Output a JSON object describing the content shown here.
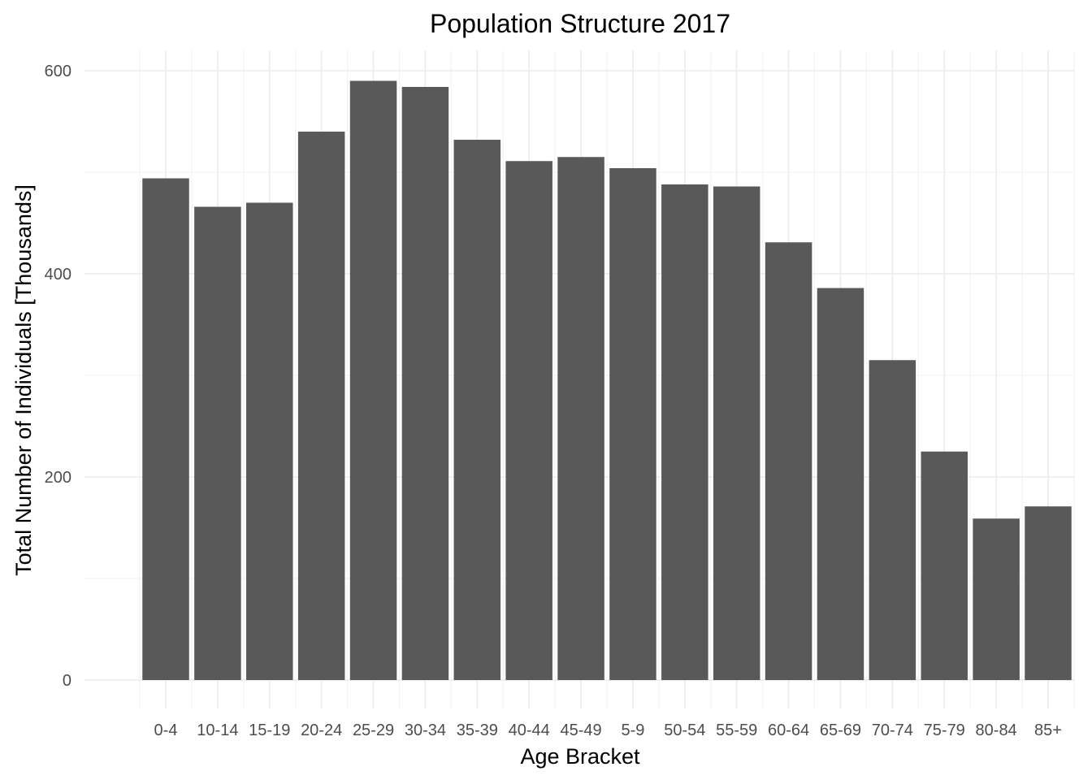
{
  "chart_data": {
    "type": "bar",
    "title": "Population Structure 2017",
    "xlabel": "Age Bracket",
    "ylabel": "Total Number of Individuals [Thousands]",
    "categories": [
      "0-4",
      "10-14",
      "15-19",
      "20-24",
      "25-29",
      "30-34",
      "35-39",
      "40-44",
      "45-49",
      "5-9",
      "50-54",
      "55-59",
      "60-64",
      "65-69",
      "70-74",
      "75-79",
      "80-84",
      "85+"
    ],
    "values": [
      494,
      466,
      470,
      540,
      590,
      584,
      532,
      511,
      515,
      504,
      488,
      486,
      431,
      386,
      315,
      225,
      159,
      171
    ],
    "ylim": [
      0,
      600
    ],
    "yticks": [
      0,
      200,
      400,
      600
    ],
    "grid": true,
    "legend": "none",
    "bar_color": "#595959"
  }
}
